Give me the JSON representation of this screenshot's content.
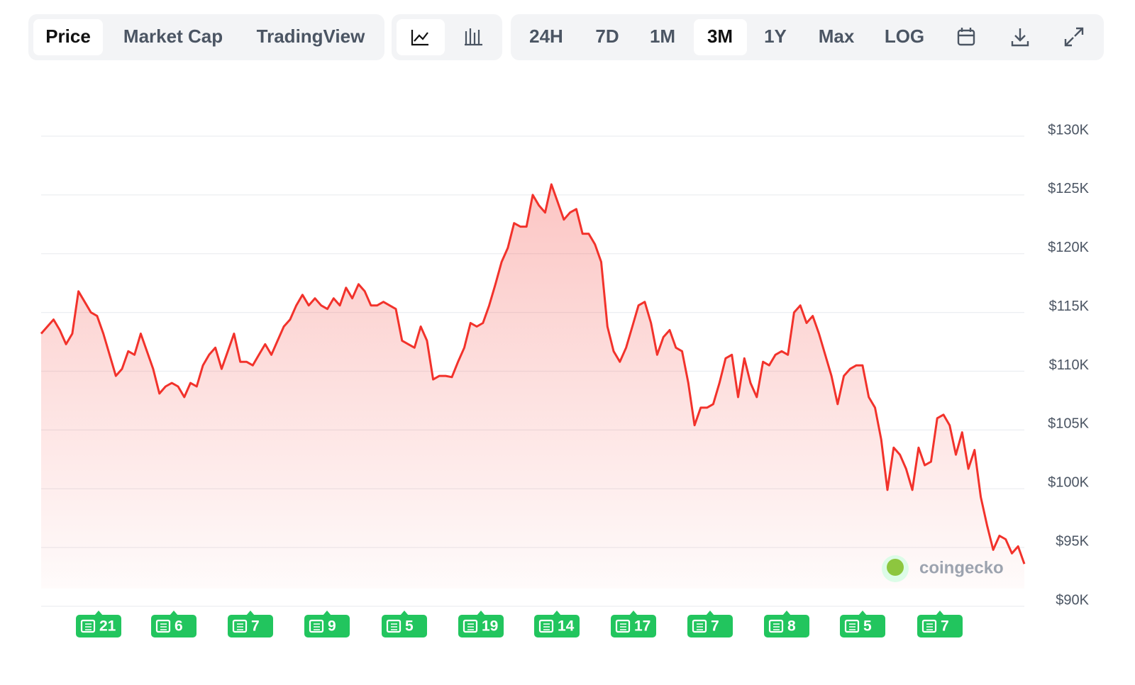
{
  "toolbar": {
    "views": [
      "Price",
      "Market Cap",
      "TradingView"
    ],
    "active_view": 0,
    "ranges": [
      "24H",
      "7D",
      "1M",
      "3M",
      "1Y",
      "Max",
      "LOG"
    ],
    "active_range": 3
  },
  "chart_data": {
    "type": "line",
    "color": "#f2322b",
    "grid": true,
    "values": [
      113200,
      113800,
      114400,
      113500,
      112300,
      113200,
      116800,
      115900,
      115000,
      114700,
      113200,
      111400,
      109600,
      110200,
      111700,
      111400,
      113200,
      111700,
      110200,
      108100,
      108700,
      109000,
      108700,
      107800,
      109000,
      108700,
      110500,
      111400,
      112000,
      110200,
      111700,
      113200,
      110800,
      110800,
      110500,
      111400,
      112300,
      111400,
      112600,
      113800,
      114400,
      115600,
      116500,
      115600,
      116200,
      115600,
      115300,
      116200,
      115600,
      117100,
      116200,
      117400,
      116800,
      115600,
      115600,
      115900,
      115600,
      115300,
      112600,
      112300,
      112000,
      113800,
      112600,
      109300,
      109600,
      109600,
      109500,
      110800,
      112000,
      114100,
      113800,
      114100,
      115600,
      117400,
      119300,
      120500,
      122600,
      122300,
      122300,
      125000,
      124100,
      123500,
      125900,
      124400,
      122900,
      123500,
      123800,
      121700,
      121700,
      120800,
      119300,
      113800,
      111700,
      110800,
      112000,
      113800,
      115600,
      115900,
      114100,
      111400,
      112900,
      113500,
      112000,
      111700,
      109000,
      105400,
      106900,
      106900,
      107200,
      109000,
      111100,
      111400,
      107800,
      111100,
      109000,
      107800,
      110800,
      110500,
      111400,
      111700,
      111400,
      115000,
      115600,
      114100,
      114700,
      113200,
      111400,
      109600,
      107200,
      109600,
      110200,
      110500,
      110500,
      107800,
      106900,
      104200,
      99900,
      103500,
      102900,
      101700,
      99900,
      103500,
      102000,
      102300,
      106000,
      106300,
      105400,
      102900,
      104800,
      101700,
      103300,
      99300,
      96900,
      94800,
      96000,
      95700,
      94500,
      95100,
      93600
    ],
    "ylim": [
      90000,
      130000
    ],
    "yticks": [
      {
        "value": 90000,
        "label": "$90K"
      },
      {
        "value": 95000,
        "label": "$95K"
      },
      {
        "value": 100000,
        "label": "$100K"
      },
      {
        "value": 105000,
        "label": "$105K"
      },
      {
        "value": 110000,
        "label": "$110K"
      },
      {
        "value": 115000,
        "label": "$115K"
      },
      {
        "value": 120000,
        "label": "$120K"
      },
      {
        "value": 125000,
        "label": "$125K"
      },
      {
        "value": 130000,
        "label": "$130K"
      }
    ],
    "news_counts": [
      21,
      6,
      7,
      9,
      5,
      19,
      14,
      17,
      7,
      8,
      5,
      7
    ],
    "watermark": "coingecko"
  }
}
